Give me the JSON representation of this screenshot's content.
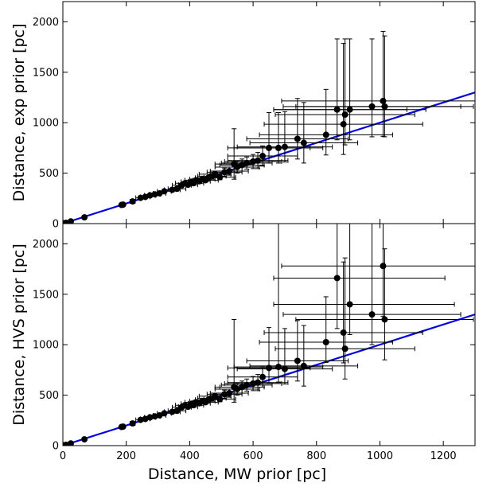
{
  "chart_data": [
    {
      "type": "scatter",
      "title": "",
      "xlabel": "",
      "ylabel": "Distance, exp prior [pc]",
      "xlim": [
        0,
        1300
      ],
      "ylim": [
        0,
        2200
      ],
      "xticks": [
        0,
        200,
        400,
        600,
        800,
        1000,
        1200
      ],
      "yticks": [
        0,
        500,
        1000,
        1500,
        2000
      ],
      "show_xtick_labels": false,
      "grid": false,
      "reference_line": {
        "x": [
          0,
          1300
        ],
        "y": [
          0,
          1300
        ]
      },
      "points": [
        [
          3,
          3,
          0,
          0,
          0,
          0
        ],
        [
          10,
          8,
          0,
          0,
          0,
          0
        ],
        [
          25,
          22,
          0,
          0,
          0,
          0
        ],
        [
          68,
          62,
          0,
          0,
          0,
          0
        ],
        [
          185,
          185,
          5,
          5,
          0,
          0
        ],
        [
          190,
          188,
          5,
          5,
          0,
          0
        ],
        [
          220,
          220,
          8,
          8,
          0,
          0
        ],
        [
          245,
          255,
          15,
          15,
          10,
          10
        ],
        [
          260,
          265,
          15,
          15,
          10,
          10
        ],
        [
          275,
          280,
          18,
          18,
          10,
          10
        ],
        [
          290,
          290,
          18,
          18,
          10,
          10
        ],
        [
          305,
          300,
          20,
          20,
          10,
          10
        ],
        [
          320,
          320,
          22,
          22,
          12,
          12
        ],
        [
          345,
          335,
          25,
          25,
          12,
          12
        ],
        [
          360,
          345,
          28,
          28,
          15,
          15
        ],
        [
          375,
          380,
          30,
          30,
          15,
          15
        ],
        [
          385,
          400,
          30,
          30,
          15,
          15
        ],
        [
          395,
          385,
          30,
          30,
          15,
          15
        ],
        [
          405,
          415,
          32,
          32,
          18,
          18
        ],
        [
          412,
          400,
          32,
          32,
          18,
          18
        ],
        [
          420,
          430,
          35,
          35,
          18,
          18
        ],
        [
          430,
          420,
          35,
          35,
          20,
          20
        ],
        [
          440,
          440,
          40,
          40,
          20,
          20
        ],
        [
          450,
          430,
          40,
          40,
          20,
          20
        ],
        [
          460,
          455,
          42,
          42,
          22,
          22
        ],
        [
          470,
          470,
          45,
          45,
          25,
          25
        ],
        [
          480,
          490,
          50,
          50,
          30,
          30
        ],
        [
          495,
          460,
          50,
          50,
          25,
          25
        ],
        [
          510,
          510,
          55,
          55,
          40,
          40
        ],
        [
          525,
          520,
          60,
          60,
          40,
          40
        ],
        [
          540,
          590,
          60,
          60,
          150,
          350
        ],
        [
          550,
          560,
          70,
          70,
          60,
          60
        ],
        [
          565,
          580,
          70,
          70,
          60,
          60
        ],
        [
          580,
          600,
          80,
          80,
          60,
          60
        ],
        [
          600,
          615,
          90,
          90,
          70,
          70
        ],
        [
          615,
          625,
          95,
          95,
          80,
          80
        ],
        [
          630,
          670,
          110,
          110,
          100,
          100
        ],
        [
          650,
          750,
          130,
          130,
          150,
          350
        ],
        [
          680,
          750,
          140,
          140,
          150,
          350
        ],
        [
          700,
          760,
          150,
          150,
          150,
          350
        ],
        [
          740,
          840,
          160,
          160,
          200,
          400
        ],
        [
          760,
          800,
          170,
          170,
          200,
          400
        ],
        [
          830,
          880,
          210,
          210,
          200,
          450
        ],
        [
          865,
          1130,
          200,
          220,
          300,
          700
        ],
        [
          885,
          985,
          250,
          250,
          300,
          800
        ],
        [
          890,
          1080,
          220,
          220,
          300,
          750
        ],
        [
          905,
          1130,
          240,
          240,
          300,
          700
        ],
        [
          975,
          1160,
          280,
          280,
          300,
          670
        ],
        [
          1010,
          1215,
          320,
          320,
          350,
          690
        ],
        [
          1015,
          1160,
          280,
          280,
          300,
          700
        ]
      ]
    },
    {
      "type": "scatter",
      "title": "",
      "xlabel": "Distance, MW prior [pc]",
      "ylabel": "Distance, HVS prior [pc]",
      "xlim": [
        0,
        1300
      ],
      "ylim": [
        0,
        2200
      ],
      "xticks": [
        0,
        200,
        400,
        600,
        800,
        1000,
        1200
      ],
      "yticks": [
        0,
        500,
        1000,
        1500,
        2000
      ],
      "show_xtick_labels": true,
      "grid": false,
      "reference_line": {
        "x": [
          0,
          1300
        ],
        "y": [
          0,
          1300
        ]
      },
      "points": [
        [
          3,
          3,
          0,
          0,
          0,
          0
        ],
        [
          10,
          8,
          0,
          0,
          0,
          0
        ],
        [
          25,
          22,
          0,
          0,
          0,
          0
        ],
        [
          68,
          62,
          0,
          0,
          0,
          0
        ],
        [
          185,
          185,
          5,
          5,
          0,
          0
        ],
        [
          190,
          188,
          5,
          5,
          0,
          0
        ],
        [
          220,
          220,
          8,
          8,
          0,
          0
        ],
        [
          245,
          255,
          15,
          15,
          10,
          10
        ],
        [
          260,
          265,
          15,
          15,
          10,
          10
        ],
        [
          275,
          280,
          18,
          18,
          10,
          10
        ],
        [
          290,
          290,
          18,
          18,
          10,
          10
        ],
        [
          305,
          300,
          20,
          20,
          10,
          10
        ],
        [
          320,
          320,
          22,
          22,
          12,
          12
        ],
        [
          345,
          335,
          25,
          25,
          12,
          12
        ],
        [
          360,
          345,
          28,
          28,
          15,
          15
        ],
        [
          375,
          380,
          30,
          30,
          15,
          15
        ],
        [
          385,
          400,
          30,
          30,
          15,
          15
        ],
        [
          395,
          385,
          30,
          30,
          15,
          15
        ],
        [
          405,
          415,
          32,
          32,
          18,
          18
        ],
        [
          412,
          400,
          32,
          32,
          18,
          18
        ],
        [
          420,
          430,
          35,
          35,
          18,
          18
        ],
        [
          430,
          420,
          35,
          35,
          20,
          20
        ],
        [
          440,
          440,
          40,
          40,
          20,
          20
        ],
        [
          450,
          430,
          40,
          40,
          20,
          20
        ],
        [
          460,
          455,
          42,
          42,
          22,
          22
        ],
        [
          470,
          470,
          45,
          45,
          25,
          25
        ],
        [
          480,
          490,
          50,
          50,
          30,
          30
        ],
        [
          495,
          460,
          50,
          50,
          25,
          25
        ],
        [
          510,
          510,
          55,
          55,
          40,
          40
        ],
        [
          525,
          520,
          60,
          60,
          40,
          40
        ],
        [
          540,
          580,
          60,
          60,
          150,
          670
        ],
        [
          550,
          560,
          70,
          70,
          60,
          60
        ],
        [
          565,
          580,
          70,
          70,
          60,
          60
        ],
        [
          580,
          600,
          80,
          80,
          60,
          60
        ],
        [
          600,
          615,
          90,
          90,
          70,
          70
        ],
        [
          615,
          625,
          95,
          95,
          80,
          80
        ],
        [
          630,
          680,
          110,
          110,
          100,
          100
        ],
        [
          650,
          770,
          130,
          130,
          150,
          400
        ],
        [
          680,
          780,
          140,
          140,
          150,
          1500
        ],
        [
          700,
          760,
          150,
          150,
          150,
          400
        ],
        [
          740,
          840,
          160,
          160,
          200,
          400
        ],
        [
          760,
          790,
          170,
          170,
          200,
          400
        ],
        [
          830,
          1025,
          210,
          210,
          200,
          450
        ],
        [
          865,
          1660,
          200,
          340,
          500,
          800
        ],
        [
          885,
          1120,
          250,
          250,
          300,
          700
        ],
        [
          890,
          960,
          220,
          220,
          300,
          900
        ],
        [
          905,
          1400,
          240,
          330,
          300,
          800
        ],
        [
          975,
          1300,
          280,
          280,
          300,
          900
        ],
        [
          1010,
          1780,
          320,
          320,
          500,
          600
        ],
        [
          1015,
          1250,
          280,
          280,
          400,
          700
        ]
      ]
    }
  ]
}
